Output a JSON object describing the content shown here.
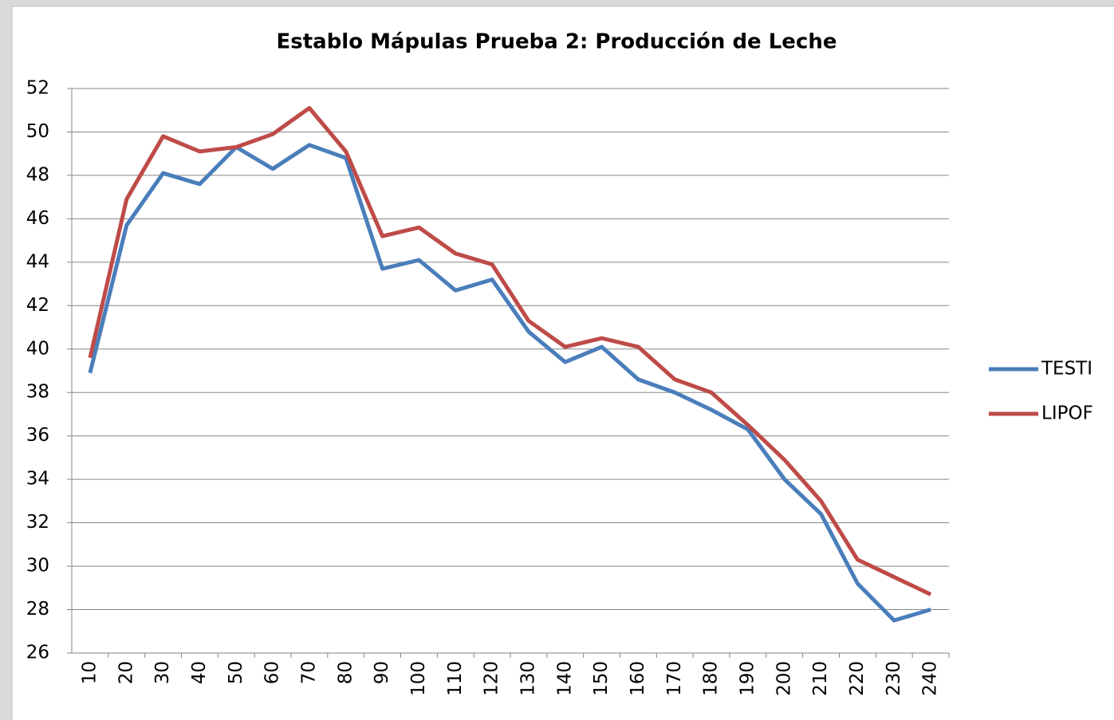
{
  "chart_data": {
    "type": "line",
    "title": "Establo Mápulas Prueba 2: Producción de Leche",
    "categories": [
      10,
      20,
      30,
      40,
      50,
      60,
      70,
      80,
      90,
      100,
      110,
      120,
      130,
      140,
      150,
      160,
      170,
      180,
      190,
      200,
      210,
      220,
      230,
      240
    ],
    "series": [
      {
        "name": "TESTI",
        "color": "#4a7ebb",
        "values": [
          38.9,
          45.7,
          48.1,
          47.6,
          49.3,
          48.3,
          49.4,
          48.8,
          43.7,
          44.1,
          42.7,
          43.2,
          40.8,
          39.4,
          40.1,
          38.6,
          38.0,
          37.2,
          36.3,
          34.0,
          32.4,
          29.2,
          27.5,
          28.0
        ]
      },
      {
        "name": "LIPOF",
        "color": "#be4b48",
        "values": [
          39.6,
          46.9,
          49.8,
          49.1,
          49.3,
          49.9,
          51.1,
          49.1,
          45.2,
          45.6,
          44.4,
          43.9,
          41.3,
          40.1,
          40.5,
          40.1,
          38.6,
          38.0,
          36.5,
          34.9,
          33.0,
          30.3,
          29.5,
          28.7
        ]
      }
    ],
    "ylim": [
      26,
      52
    ],
    "yticks": [
      26,
      28,
      30,
      32,
      34,
      36,
      38,
      40,
      42,
      44,
      46,
      48,
      50,
      52
    ],
    "grid": true,
    "legend": "right"
  }
}
